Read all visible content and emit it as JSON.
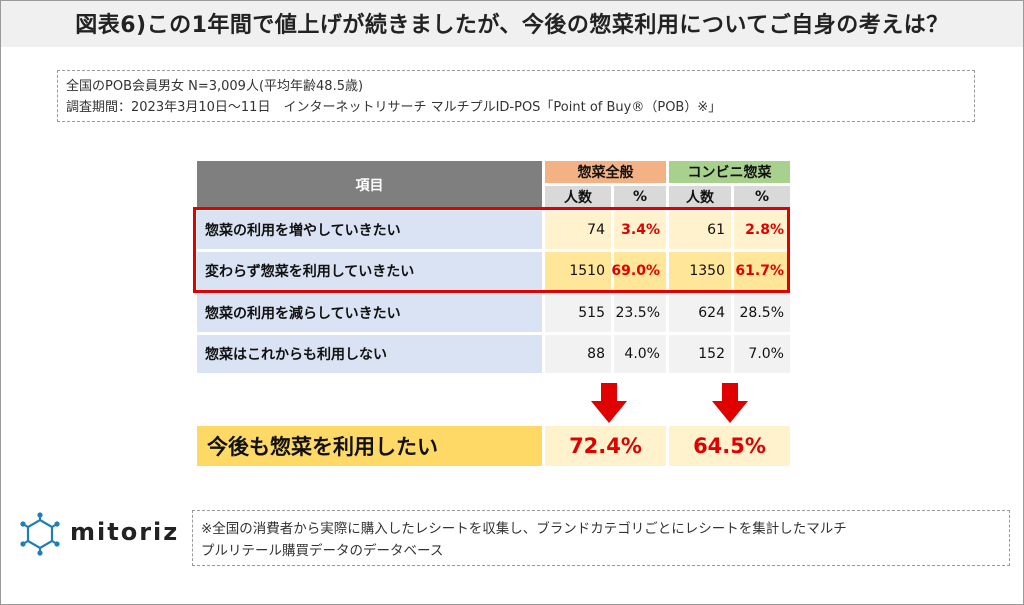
{
  "title": "図表6)この1年間で値上げが続きましたが、今後の惣菜利用についてご自身の考えは？",
  "survey": {
    "line1": "全国のPOB会員男女 N=3,009人(平均年齢48.5歳)",
    "line2": "調査期間：2023年3月10日～11日　インターネットリサーチ マルチプルID-POS「Point of Buy®（POB）※」"
  },
  "table": {
    "item_header": "項目",
    "group1": "惣菜全般",
    "group2": "コンビニ惣菜",
    "sub_count": "人数",
    "sub_pct": "%",
    "rows": [
      {
        "label": "惣菜の利用を増やしていきたい",
        "c1": "74",
        "p1": "3.4%",
        "c2": "61",
        "p2": "2.8%"
      },
      {
        "label": "変わらず惣菜を利用していきたい",
        "c1": "1510",
        "p1": "69.0%",
        "c2": "1350",
        "p2": "61.7%"
      },
      {
        "label": "惣菜の利用を減らしていきたい",
        "c1": "515",
        "p1": "23.5%",
        "c2": "624",
        "p2": "28.5%"
      },
      {
        "label": "惣菜はこれからも利用しない",
        "c1": "88",
        "p1": "4.0%",
        "c2": "152",
        "p2": "7.0%"
      }
    ]
  },
  "summary": {
    "label": "今後も惣菜を利用したい",
    "v1": "72.4%",
    "v2": "64.5%"
  },
  "logo": {
    "text": "mitoriz",
    "icon": "mitoriz-logo-icon",
    "color": "#1e7fb8"
  },
  "note": {
    "line1": "※全国の消費者から実際に購入したレシートを収集し、ブランドカテゴリごとにレシートを集計したマルチ",
    "line2": "プルリテール購買データのデータベース"
  },
  "colors": {
    "accent_red": "#e00000",
    "header_gray": "#7f7f7f",
    "sozai_orange": "#f4b183",
    "conv_green": "#a9d18e",
    "row_blue": "#dae3f3",
    "highlight_yellow": "#ffd966"
  }
}
